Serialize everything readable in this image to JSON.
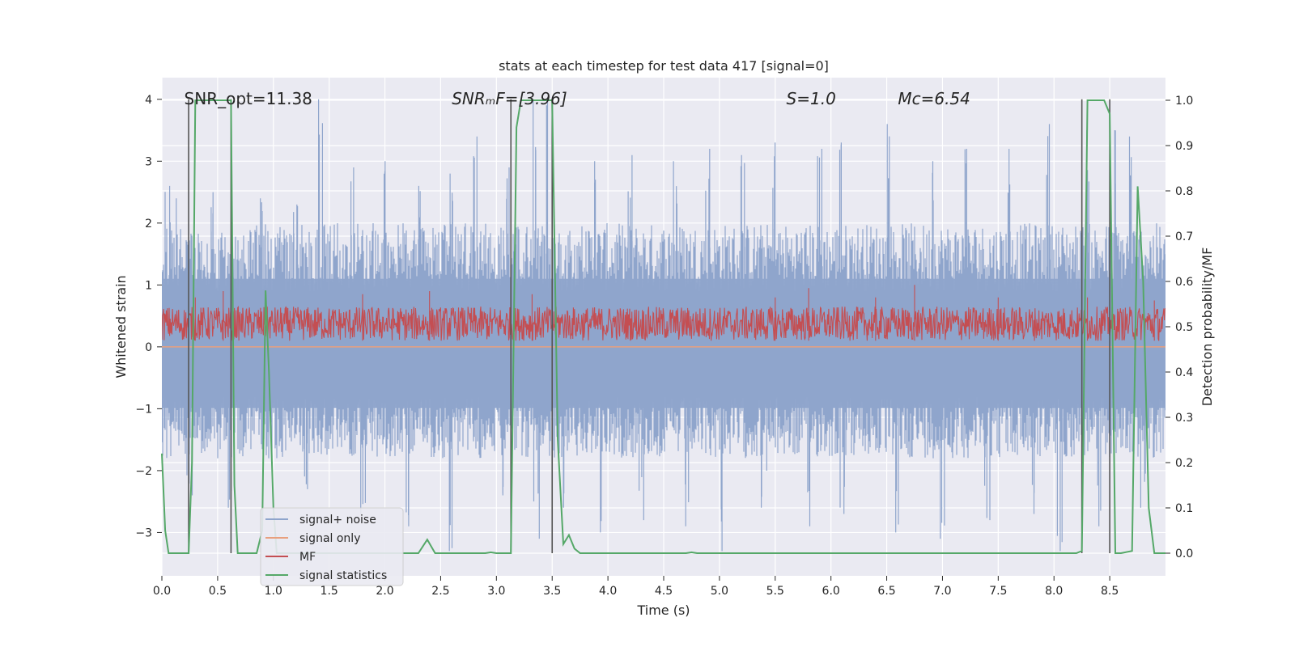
{
  "chart_data": {
    "type": "line",
    "title": "stats at each timestep for test data 417 [signal=0]",
    "xlabel": "Time (s)",
    "ylabel_left": "Whitened strain",
    "ylabel_right": "Detection probability/MF",
    "xlim": [
      0.0,
      9.0
    ],
    "ylim_left": [
      -3.7,
      4.35
    ],
    "ylim_right": [
      -0.05,
      1.05
    ],
    "x_ticks": [
      0.0,
      0.5,
      1.0,
      1.5,
      2.0,
      2.5,
      3.0,
      3.5,
      4.0,
      4.5,
      5.0,
      5.5,
      6.0,
      6.5,
      7.0,
      7.5,
      8.0,
      8.5
    ],
    "x_tick_labels": [
      "0.0",
      "0.5",
      "1.0",
      "1.5",
      "2.0",
      "2.5",
      "3.0",
      "3.5",
      "4.0",
      "4.5",
      "5.0",
      "5.5",
      "6.0",
      "6.5",
      "7.0",
      "7.5",
      "8.0",
      "8.5"
    ],
    "y_ticks_left": [
      -3,
      -2,
      -1,
      0,
      1,
      2,
      3,
      4
    ],
    "y_tick_labels_left": [
      "−3",
      "−2",
      "−1",
      "0",
      "1",
      "2",
      "3",
      "4"
    ],
    "y_ticks_right": [
      0.0,
      0.1,
      0.2,
      0.3,
      0.4,
      0.5,
      0.6,
      0.7,
      0.8,
      0.9,
      1.0
    ],
    "y_tick_labels_right": [
      "0.0",
      "0.1",
      "0.2",
      "0.3",
      "0.4",
      "0.5",
      "0.6",
      "0.7",
      "0.8",
      "0.9",
      "1.0"
    ],
    "grid": true,
    "annotations": [
      {
        "text": "SNR_opt=11.38",
        "x": 0.2,
        "y": 4.0
      },
      {
        "text": "SNRₘF=[3.96]",
        "x": 2.6,
        "y": 4.0
      },
      {
        "text": "S=1.0",
        "x": 5.6,
        "y": 4.0
      },
      {
        "text": "Mᴄ=6.54",
        "x": 6.6,
        "y": 4.0
      }
    ],
    "legend": {
      "position": "lower-left",
      "entries": [
        {
          "label": "signal+ noise",
          "color": "#8fa5cc"
        },
        {
          "label": "signal only",
          "color": "#e8a07e"
        },
        {
          "label": "MF",
          "color": "#c44e52"
        },
        {
          "label": "signal statistics",
          "color": "#55a868"
        }
      ]
    },
    "vertical_markers": [
      0.24,
      0.62,
      3.13,
      3.5,
      8.25,
      8.5
    ],
    "series": [
      {
        "name": "signal+ noise",
        "axis": "left",
        "color": "#8fa5cc",
        "band": {
          "low": -1.8,
          "high": 2.0
        },
        "spikes": [
          {
            "x": 0.05,
            "y": 2.6
          },
          {
            "x": 0.15,
            "y": 2.4
          },
          {
            "x": 0.45,
            "y": 2.5
          },
          {
            "x": 0.9,
            "y": 2.4
          },
          {
            "x": 1.2,
            "y": 2.3
          },
          {
            "x": 1.43,
            "y": 4.0
          },
          {
            "x": 1.7,
            "y": 2.9
          },
          {
            "x": 2.0,
            "y": 3.0
          },
          {
            "x": 2.3,
            "y": 2.6
          },
          {
            "x": 2.6,
            "y": 2.8
          },
          {
            "x": 2.82,
            "y": 3.4
          },
          {
            "x": 3.1,
            "y": 2.9
          },
          {
            "x": 3.35,
            "y": 4.0
          },
          {
            "x": 3.47,
            "y": 4.0
          },
          {
            "x": 3.9,
            "y": 3.0
          },
          {
            "x": 4.2,
            "y": 3.1
          },
          {
            "x": 4.6,
            "y": 3.0
          },
          {
            "x": 4.9,
            "y": 3.2
          },
          {
            "x": 5.2,
            "y": 3.1
          },
          {
            "x": 5.5,
            "y": 3.3
          },
          {
            "x": 5.9,
            "y": 3.2
          },
          {
            "x": 6.1,
            "y": 3.3
          },
          {
            "x": 6.5,
            "y": 3.6
          },
          {
            "x": 6.9,
            "y": 3.0
          },
          {
            "x": 7.2,
            "y": 3.2
          },
          {
            "x": 7.6,
            "y": 3.2
          },
          {
            "x": 7.95,
            "y": 3.6
          },
          {
            "x": 8.3,
            "y": 3.5
          },
          {
            "x": 8.55,
            "y": 3.5
          },
          {
            "x": 8.7,
            "y": 3.4
          },
          {
            "x": 0.25,
            "y": -2.4
          },
          {
            "x": 0.6,
            "y": -2.6
          },
          {
            "x": 1.3,
            "y": -2.3
          },
          {
            "x": 1.8,
            "y": -2.7
          },
          {
            "x": 2.2,
            "y": -2.9
          },
          {
            "x": 2.6,
            "y": -3.3
          },
          {
            "x": 3.05,
            "y": -2.4
          },
          {
            "x": 3.36,
            "y": -3.1
          },
          {
            "x": 3.6,
            "y": -2.6
          },
          {
            "x": 3.95,
            "y": -3.0
          },
          {
            "x": 4.3,
            "y": -2.8
          },
          {
            "x": 4.7,
            "y": -2.9
          },
          {
            "x": 5.0,
            "y": -3.3
          },
          {
            "x": 5.4,
            "y": -2.6
          },
          {
            "x": 5.8,
            "y": -2.9
          },
          {
            "x": 6.1,
            "y": -2.7
          },
          {
            "x": 6.6,
            "y": -3.0
          },
          {
            "x": 7.0,
            "y": -3.1
          },
          {
            "x": 7.4,
            "y": -2.8
          },
          {
            "x": 7.8,
            "y": -2.7
          },
          {
            "x": 8.05,
            "y": -3.3
          },
          {
            "x": 8.4,
            "y": -2.9
          },
          {
            "x": 8.8,
            "y": -2.6
          }
        ]
      },
      {
        "name": "signal only",
        "axis": "left",
        "color": "#e8a07e",
        "x": [
          0.0,
          9.0
        ],
        "y": [
          0.0,
          0.0
        ]
      },
      {
        "name": "MF",
        "axis": "left",
        "color": "#c44e52",
        "band": {
          "low": 0.0,
          "high": 0.65
        },
        "peaks": [
          {
            "x": 0.3,
            "y": 0.8
          },
          {
            "x": 0.55,
            "y": 0.9
          },
          {
            "x": 1.8,
            "y": 0.85
          },
          {
            "x": 2.4,
            "y": 0.9
          },
          {
            "x": 3.32,
            "y": 0.85
          },
          {
            "x": 5.5,
            "y": 0.8
          },
          {
            "x": 5.8,
            "y": 0.95
          },
          {
            "x": 6.4,
            "y": 0.8
          },
          {
            "x": 6.75,
            "y": 1.0
          },
          {
            "x": 7.5,
            "y": 0.8
          },
          {
            "x": 8.3,
            "y": 0.8
          },
          {
            "x": 8.9,
            "y": 0.75
          }
        ]
      },
      {
        "name": "signal statistics",
        "axis": "right",
        "color": "#55a868",
        "x": [
          0.0,
          0.03,
          0.06,
          0.09,
          0.24,
          0.27,
          0.3,
          0.34,
          0.6,
          0.62,
          0.65,
          0.68,
          0.7,
          0.85,
          0.9,
          0.93,
          0.96,
          1.0,
          1.03,
          1.06,
          2.3,
          2.38,
          2.45,
          2.9,
          2.95,
          3.0,
          3.1,
          3.13,
          3.18,
          3.22,
          3.28,
          3.33,
          3.5,
          3.55,
          3.6,
          3.65,
          3.7,
          3.75,
          3.8,
          4.7,
          4.75,
          4.8,
          8.2,
          8.25,
          8.3,
          8.35,
          8.45,
          8.5,
          8.55,
          8.6,
          8.7,
          8.75,
          8.8,
          8.85,
          8.9,
          9.0
        ],
        "y": [
          0.22,
          0.05,
          0.0,
          0.0,
          0.0,
          0.2,
          1.0,
          1.0,
          1.0,
          1.0,
          0.15,
          0.0,
          0.0,
          0.0,
          0.05,
          0.58,
          0.4,
          0.1,
          0.0,
          0.0,
          0.0,
          0.03,
          0.0,
          0.0,
          0.002,
          0.0,
          0.0,
          0.0,
          0.94,
          1.0,
          1.0,
          1.0,
          1.0,
          0.25,
          0.02,
          0.04,
          0.01,
          0.0,
          0.0,
          0.0,
          0.002,
          0.0,
          0.0,
          0.005,
          1.0,
          1.0,
          1.0,
          0.97,
          0.0,
          0.0,
          0.005,
          0.81,
          0.6,
          0.1,
          0.0,
          0.0
        ]
      }
    ]
  }
}
